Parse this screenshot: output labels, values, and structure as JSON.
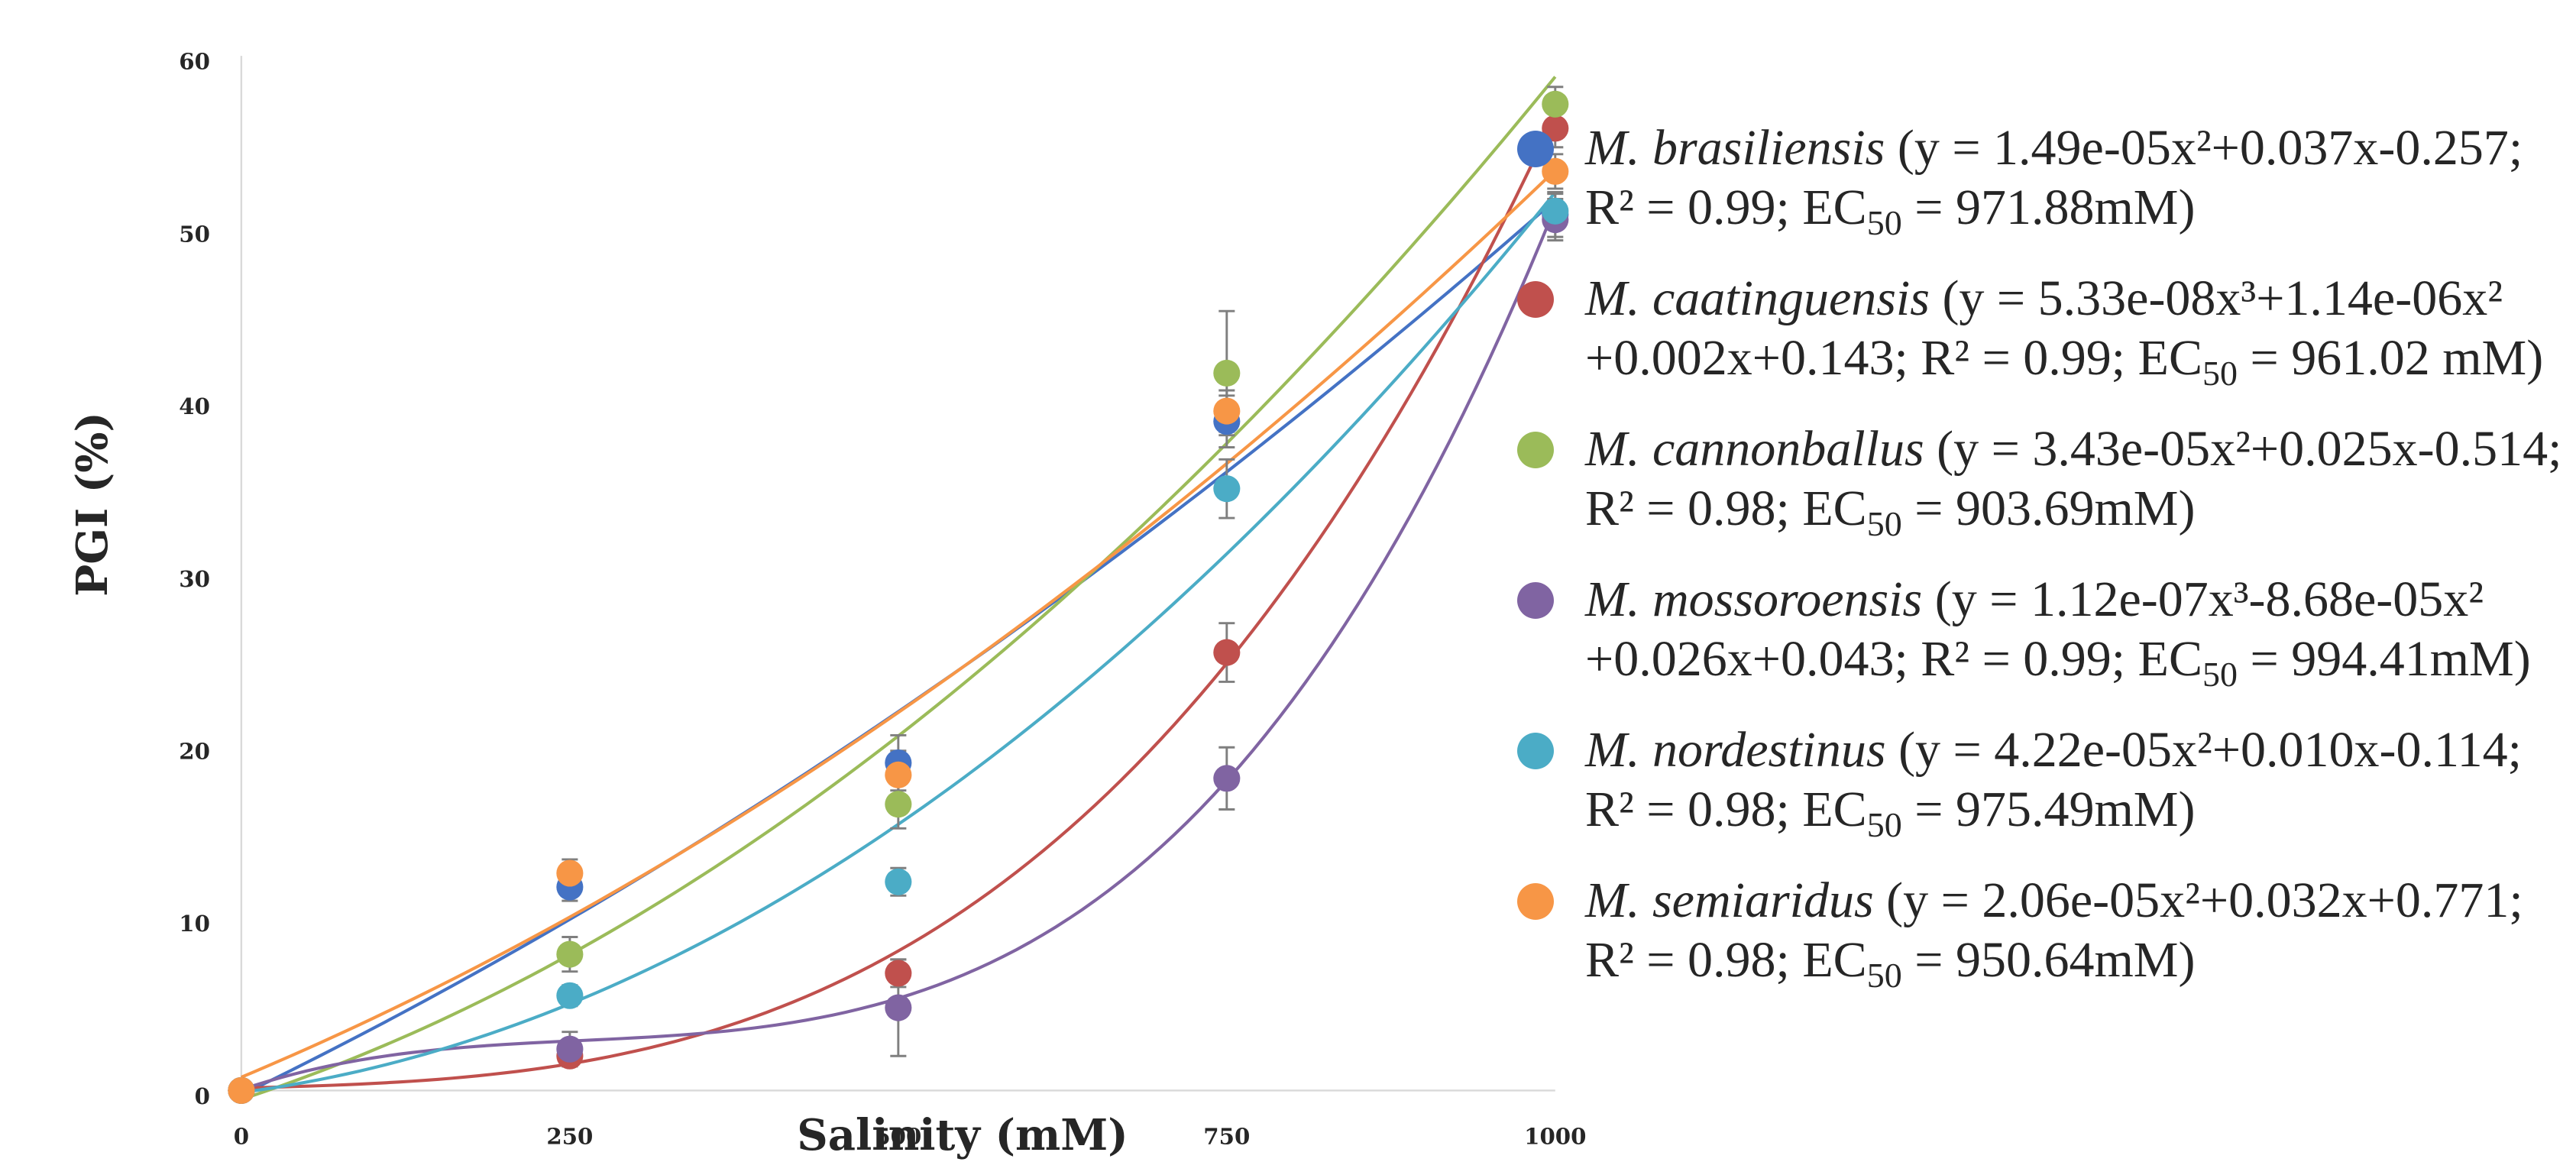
{
  "chart_data": {
    "type": "scatter",
    "xlabel": "Salinity (mM)",
    "ylabel": "PGI (%)",
    "xlim": [
      0,
      1000
    ],
    "ylim": [
      0,
      60
    ],
    "xticks": [
      0,
      250,
      500,
      750,
      1000
    ],
    "yticks": [
      0,
      10,
      20,
      30,
      40,
      50,
      60
    ],
    "grid": false,
    "legend_position": "right",
    "x": [
      0,
      250,
      500,
      750,
      1000
    ],
    "series": [
      {
        "name": "M. brasiliensis",
        "color": "#4472C4",
        "values": [
          0,
          11.8,
          19.0,
          38.8,
          50.8
        ],
        "errors": [
          0,
          0.8,
          1.6,
          1.5,
          1.3
        ],
        "fit": "poly",
        "coef": [
          -0.257,
          0.037,
          1.49e-05
        ],
        "legend_species": "M. brasiliensis",
        "legend_line1": " (y = 1.49e-05x²+0.037x-0.257;",
        "legend_line2_pre": "R² = 0.99; EC",
        "legend_sub": "50",
        "legend_line2_post": " = 971.88mM)"
      },
      {
        "name": "M. caatinguensis",
        "color": "#C0504D",
        "values": [
          0,
          2.0,
          6.8,
          25.4,
          55.8
        ],
        "errors": [
          0,
          0.6,
          0.8,
          1.7,
          1.1
        ],
        "fit": "poly",
        "coef": [
          0.143,
          0.002,
          1.14e-06,
          5.33e-08
        ],
        "legend_species": "M. caatinguensis",
        "legend_line1": " (y = 5.33e-08x³+1.14e-06x²",
        "legend_line2_pre": "+0.002x+0.143; R² = 0.99; EC",
        "legend_sub": "50",
        "legend_line2_post": " = 961.02 mM)"
      },
      {
        "name": "M. cannonballus",
        "color": "#9BBB59",
        "values": [
          0,
          7.9,
          16.6,
          41.6,
          57.2
        ],
        "errors": [
          0,
          1.0,
          1.4,
          3.6,
          1.0
        ],
        "fit": "poly",
        "coef": [
          -0.514,
          0.025,
          3.43e-05
        ],
        "legend_species": "M. cannonballus",
        "legend_line1": " (y = 3.43e-05x²+0.025x-0.514;",
        "legend_line2_pre": "R² = 0.98; EC",
        "legend_sub": "50",
        "legend_line2_post": " = 903.69mM)"
      },
      {
        "name": "M. mossoroensis",
        "color": "#8064A2",
        "values": [
          0,
          2.4,
          4.8,
          18.1,
          50.5
        ],
        "errors": [
          0,
          1.0,
          2.8,
          1.8,
          1.2
        ],
        "fit": "poly",
        "coef": [
          0.043,
          0.026,
          -8.68e-05,
          1.12e-07
        ],
        "legend_species": "M. mossoroensis",
        "legend_line1": " (y = 1.12e-07x³-8.68e-05x²",
        "legend_line2_pre": "+0.026x+0.043; R² = 0.99; EC",
        "legend_sub": "50",
        "legend_line2_post": " = 994.41mM)"
      },
      {
        "name": "M. nordestinus",
        "color": "#4BACC6",
        "values": [
          0,
          5.5,
          12.1,
          34.9,
          51.0
        ],
        "errors": [
          0,
          0.6,
          0.8,
          1.7,
          1.0
        ],
        "fit": "poly",
        "coef": [
          -0.114,
          0.01,
          4.22e-05
        ],
        "legend_species": "M. nordestinus",
        "legend_line1": " (y = 4.22e-05x²+0.010x-0.114;",
        "legend_line2_pre": "R² = 0.98; EC",
        "legend_sub": "50",
        "legend_line2_post": " = 975.49mM)"
      },
      {
        "name": "M. semiaridus",
        "color": "#F79646",
        "values": [
          0,
          12.6,
          18.3,
          39.4,
          53.3
        ],
        "errors": [
          0,
          0.8,
          1.4,
          1.2,
          1.0
        ],
        "fit": "poly",
        "coef": [
          0.771,
          0.032,
          2.06e-05
        ],
        "legend_species": "M. semiaridus",
        "legend_line1": " (y = 2.06e-05x²+0.032x+0.771;",
        "legend_line2_pre": "R² = 0.98; EC",
        "legend_sub": "50",
        "legend_line2_post": " = 950.64mM)"
      }
    ]
  }
}
